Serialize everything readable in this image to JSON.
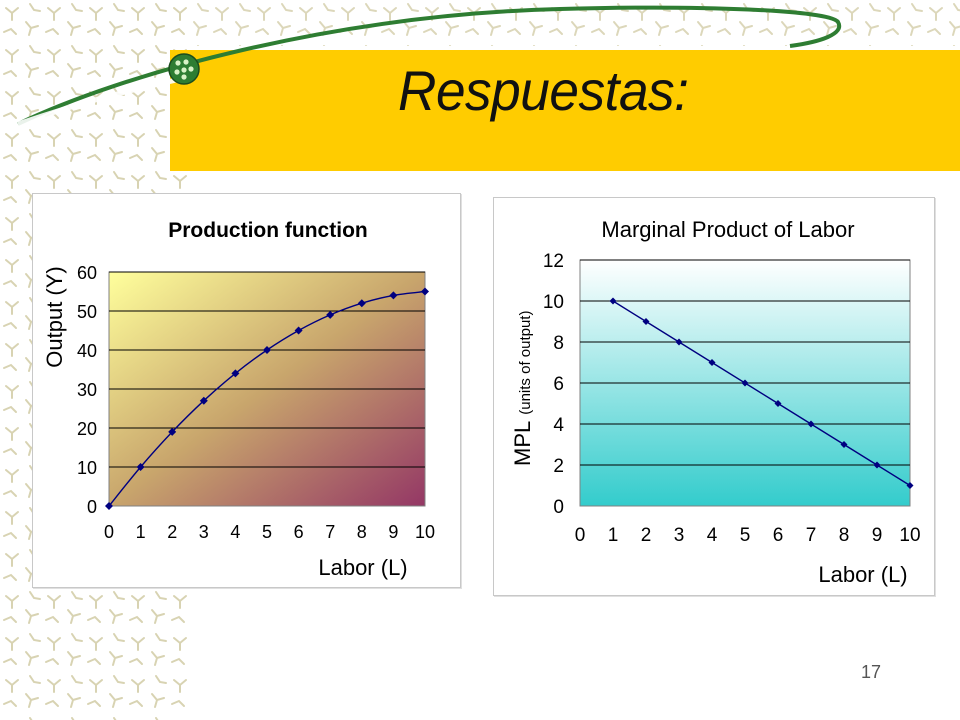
{
  "slide": {
    "title": "Respuestas:",
    "page_number": "17",
    "colors": {
      "banner": "#FFCC00",
      "decor_green": "#2E7D32",
      "marker": "#000080"
    }
  },
  "chart_data": [
    {
      "type": "line",
      "title": "Production function",
      "xlabel": "Labor (L)",
      "ylabel": "Output (Y)",
      "x": [
        0,
        1,
        2,
        3,
        4,
        5,
        6,
        7,
        8,
        9,
        10
      ],
      "series": [
        {
          "values": [
            0,
            10,
            19,
            27,
            34,
            40,
            45,
            49,
            52,
            54,
            55
          ]
        }
      ],
      "xlim": [
        0,
        10
      ],
      "ylim": [
        0,
        60
      ],
      "yticks": [
        0,
        10,
        20,
        30,
        40,
        50,
        60
      ],
      "xticks": [
        0,
        1,
        2,
        3,
        4,
        5,
        6,
        7,
        8,
        9,
        10
      ],
      "grid": true,
      "background": "gradient yellow to purple"
    },
    {
      "type": "line",
      "title": "Marginal Product of Labor",
      "xlabel": "Labor (L)",
      "ylabel": "MPL",
      "ylabel_units": "(units of output)",
      "x": [
        1,
        2,
        3,
        4,
        5,
        6,
        7,
        8,
        9,
        10
      ],
      "series": [
        {
          "values": [
            10,
            9,
            8,
            7,
            6,
            5,
            4,
            3,
            2,
            1
          ]
        }
      ],
      "xlim": [
        0,
        10
      ],
      "ylim": [
        0,
        12
      ],
      "yticks": [
        0,
        2,
        4,
        6,
        8,
        10,
        12
      ],
      "xticks": [
        0,
        1,
        2,
        3,
        4,
        5,
        6,
        7,
        8,
        9,
        10
      ],
      "grid": true,
      "background": "gradient white to teal"
    }
  ]
}
